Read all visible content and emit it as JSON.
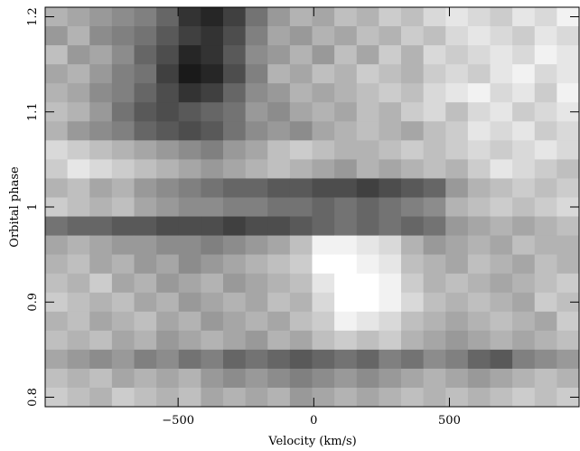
{
  "chart_data": {
    "type": "heatmap",
    "xlabel": "Velocity (km/s)",
    "ylabel": "Orbital phase",
    "colormap": "gray",
    "x": [
      -949,
      -867,
      -785,
      -703,
      -621,
      -539,
      -457,
      -375,
      -293,
      -211,
      -129,
      -47,
      35,
      117,
      199,
      281,
      363,
      445,
      527,
      609,
      691,
      773,
      855,
      937
    ],
    "y": [
      1.2,
      1.18,
      1.16,
      1.14,
      1.12,
      1.1,
      1.08,
      1.06,
      1.04,
      1.02,
      1.0,
      0.98,
      0.96,
      0.94,
      0.92,
      0.9,
      0.88,
      0.86,
      0.84,
      0.82,
      0.8
    ],
    "z": [
      [
        70,
        65,
        60,
        55,
        50,
        40,
        20,
        15,
        25,
        45,
        60,
        70,
        65,
        75,
        70,
        80,
        75,
        85,
        90,
        85,
        80,
        90,
        85,
        95
      ],
      [
        60,
        70,
        55,
        50,
        45,
        35,
        25,
        20,
        30,
        50,
        65,
        60,
        70,
        65,
        75,
        70,
        80,
        75,
        85,
        90,
        85,
        80,
        90,
        85
      ],
      [
        75,
        60,
        65,
        55,
        40,
        30,
        15,
        20,
        35,
        55,
        60,
        70,
        60,
        75,
        65,
        80,
        70,
        85,
        80,
        85,
        90,
        85,
        95,
        90
      ],
      [
        65,
        70,
        60,
        50,
        45,
        25,
        10,
        15,
        30,
        50,
        70,
        65,
        75,
        70,
        80,
        75,
        70,
        80,
        85,
        80,
        90,
        95,
        85,
        90
      ],
      [
        70,
        65,
        55,
        50,
        40,
        30,
        20,
        25,
        40,
        55,
        60,
        70,
        65,
        70,
        75,
        80,
        75,
        85,
        90,
        95,
        85,
        90,
        80,
        95
      ],
      [
        75,
        70,
        60,
        45,
        35,
        30,
        35,
        40,
        45,
        60,
        55,
        65,
        70,
        65,
        75,
        70,
        80,
        85,
        75,
        85,
        90,
        80,
        85,
        90
      ],
      [
        70,
        60,
        55,
        50,
        40,
        35,
        30,
        35,
        45,
        55,
        60,
        55,
        65,
        70,
        75,
        70,
        65,
        75,
        80,
        90,
        85,
        90,
        80,
        85
      ],
      [
        85,
        80,
        75,
        70,
        65,
        60,
        55,
        50,
        60,
        65,
        75,
        80,
        75,
        70,
        70,
        75,
        80,
        75,
        80,
        85,
        80,
        85,
        90,
        85
      ],
      [
        80,
        90,
        85,
        80,
        75,
        70,
        65,
        60,
        65,
        70,
        75,
        70,
        65,
        60,
        70,
        65,
        70,
        75,
        70,
        80,
        90,
        85,
        80,
        75
      ],
      [
        70,
        75,
        65,
        70,
        60,
        55,
        50,
        45,
        40,
        40,
        35,
        35,
        30,
        30,
        25,
        30,
        35,
        40,
        60,
        70,
        75,
        80,
        75,
        80
      ],
      [
        80,
        75,
        70,
        75,
        65,
        60,
        55,
        55,
        50,
        50,
        45,
        45,
        40,
        45,
        40,
        45,
        50,
        55,
        70,
        75,
        80,
        75,
        80,
        85
      ],
      [
        45,
        40,
        40,
        35,
        35,
        30,
        30,
        30,
        25,
        30,
        30,
        35,
        40,
        45,
        40,
        45,
        40,
        45,
        60,
        65,
        70,
        65,
        70,
        75
      ],
      [
        65,
        70,
        65,
        60,
        60,
        55,
        55,
        50,
        55,
        60,
        65,
        75,
        95,
        95,
        90,
        85,
        70,
        60,
        65,
        70,
        65,
        75,
        70,
        70
      ],
      [
        70,
        75,
        65,
        70,
        60,
        65,
        55,
        60,
        65,
        70,
        75,
        80,
        100,
        100,
        95,
        90,
        75,
        70,
        65,
        75,
        70,
        65,
        75,
        70
      ],
      [
        75,
        70,
        80,
        65,
        70,
        60,
        65,
        70,
        60,
        65,
        70,
        75,
        90,
        100,
        100,
        95,
        80,
        70,
        75,
        70,
        65,
        70,
        75,
        80
      ],
      [
        80,
        75,
        70,
        75,
        65,
        70,
        60,
        65,
        70,
        65,
        75,
        70,
        85,
        100,
        100,
        95,
        85,
        75,
        70,
        75,
        70,
        65,
        80,
        75
      ],
      [
        70,
        75,
        65,
        70,
        75,
        65,
        70,
        60,
        65,
        70,
        65,
        75,
        80,
        95,
        90,
        85,
        75,
        70,
        65,
        70,
        75,
        70,
        65,
        80
      ],
      [
        75,
        70,
        75,
        65,
        70,
        60,
        65,
        70,
        65,
        60,
        70,
        65,
        75,
        80,
        75,
        80,
        70,
        65,
        60,
        65,
        70,
        65,
        70,
        75
      ],
      [
        65,
        60,
        55,
        60,
        50,
        55,
        45,
        50,
        40,
        45,
        40,
        35,
        40,
        45,
        40,
        50,
        45,
        55,
        50,
        40,
        35,
        50,
        55,
        60
      ],
      [
        75,
        70,
        75,
        65,
        70,
        65,
        70,
        60,
        55,
        60,
        55,
        50,
        55,
        60,
        55,
        60,
        65,
        70,
        65,
        60,
        65,
        70,
        75,
        70
      ],
      [
        80,
        75,
        70,
        80,
        75,
        70,
        75,
        65,
        70,
        65,
        70,
        60,
        65,
        70,
        65,
        70,
        75,
        70,
        75,
        70,
        75,
        80,
        75,
        80
      ]
    ],
    "xlim": [
      -990,
      978
    ],
    "ylim": [
      0.79,
      1.21
    ],
    "xticks": [
      {
        "value": -500,
        "label": "−500"
      },
      0,
      500
    ],
    "yticks": [
      0.8,
      0.9,
      1,
      1.1,
      1.2
    ]
  }
}
